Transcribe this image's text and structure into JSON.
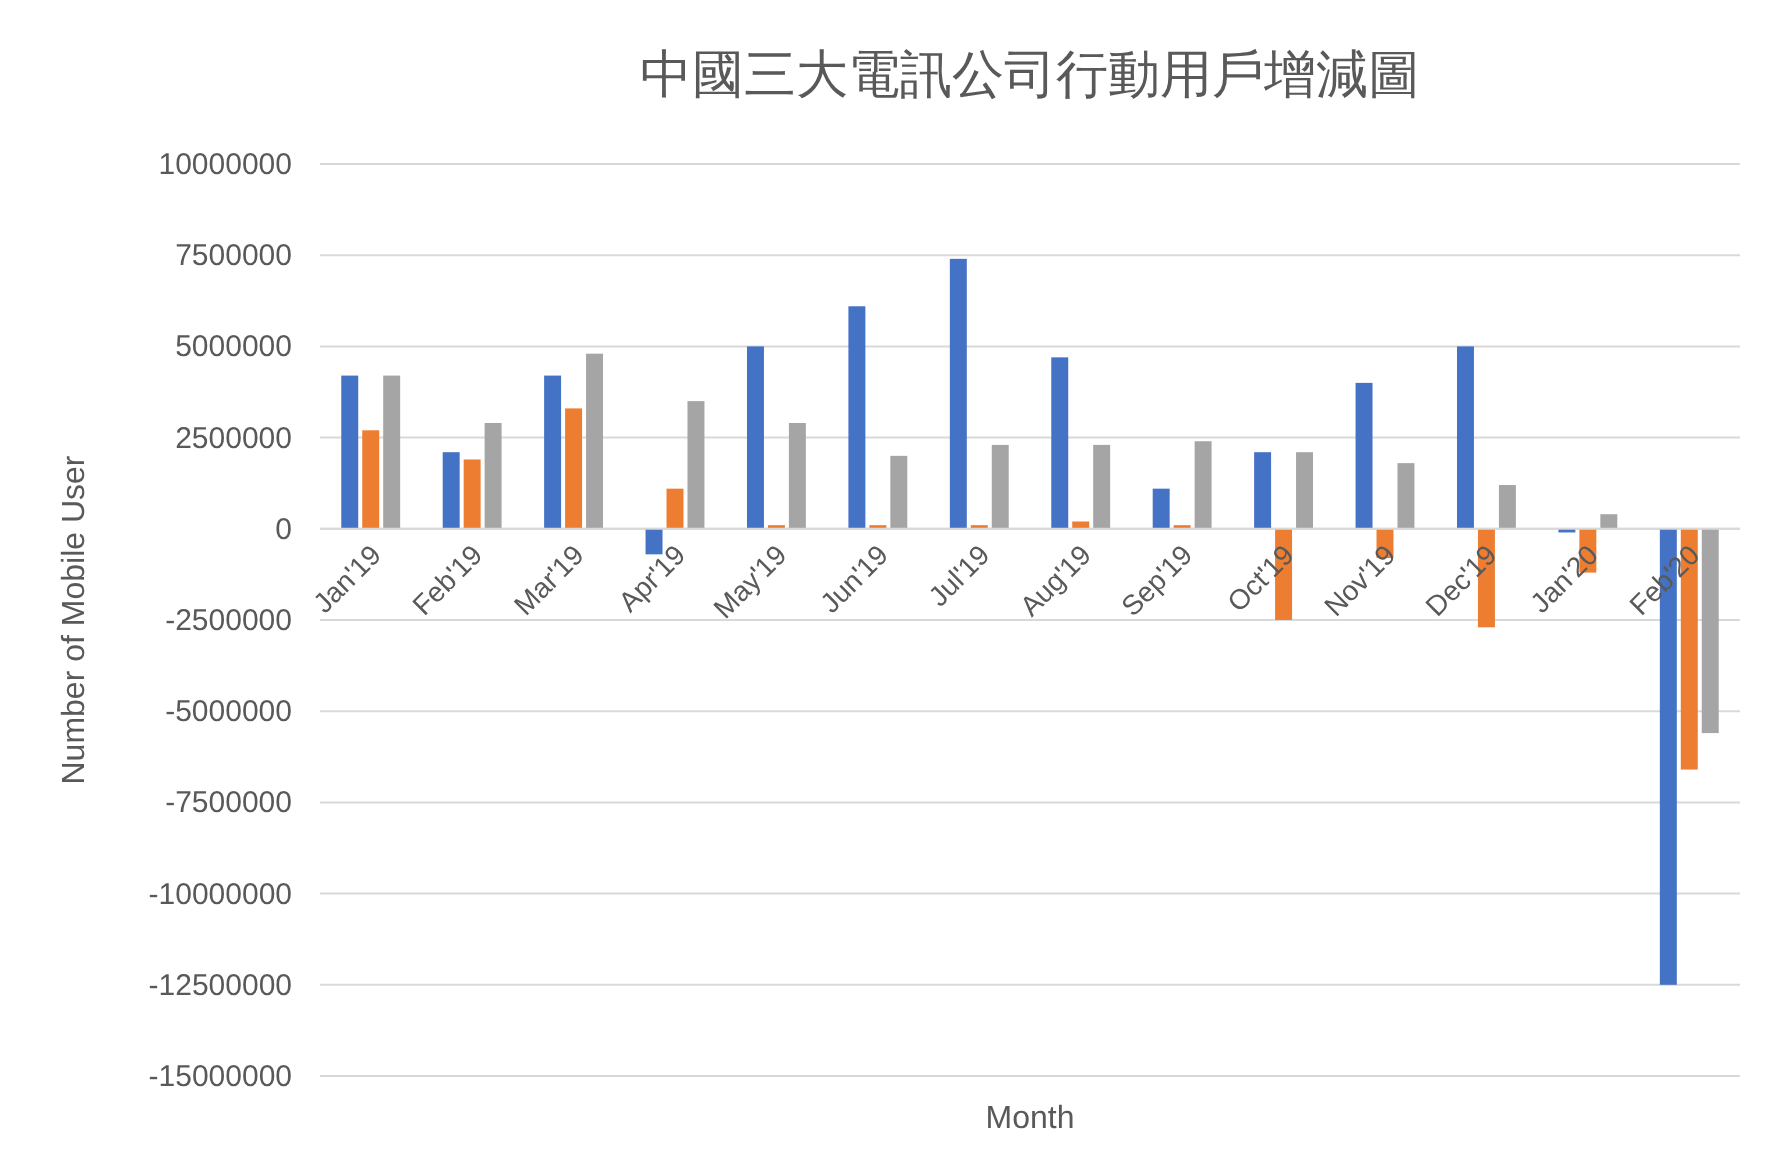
{
  "chart_data": {
    "type": "bar",
    "title": "中國三大電訊公司行動用戶增減圖",
    "xlabel": "Month",
    "ylabel": "Number of Mobile User",
    "categories": [
      "Jan'19",
      "Feb'19",
      "Mar'19",
      "Apr'19",
      "May'19",
      "Jun'19",
      "Jul'19",
      "Aug'19",
      "Sep'19",
      "Oct'19",
      "Nov'19",
      "Dec'19",
      "Jan'20",
      "Feb'20"
    ],
    "series": [
      {
        "color": "#4472c4",
        "values": [
          4200000,
          2100000,
          4200000,
          -700000,
          5000000,
          6100000,
          7400000,
          4700000,
          1100000,
          2100000,
          4000000,
          5000000,
          -100000,
          -12500000
        ]
      },
      {
        "color": "#ed7d31",
        "values": [
          2700000,
          1900000,
          3300000,
          1100000,
          100000,
          100000,
          100000,
          200000,
          100000,
          -2500000,
          -800000,
          -2700000,
          -1200000,
          -6600000
        ]
      },
      {
        "color": "#a5a5a5",
        "values": [
          4200000,
          2900000,
          4800000,
          3500000,
          2900000,
          2000000,
          2300000,
          2300000,
          2400000,
          2100000,
          1800000,
          1200000,
          400000,
          -5600000
        ]
      }
    ],
    "ylim": [
      -15000000,
      10000000
    ],
    "yticks": [
      -15000000,
      -12500000,
      -10000000,
      -7500000,
      -5000000,
      -2500000,
      0,
      2500000,
      5000000,
      7500000,
      10000000
    ],
    "grid": "y"
  }
}
